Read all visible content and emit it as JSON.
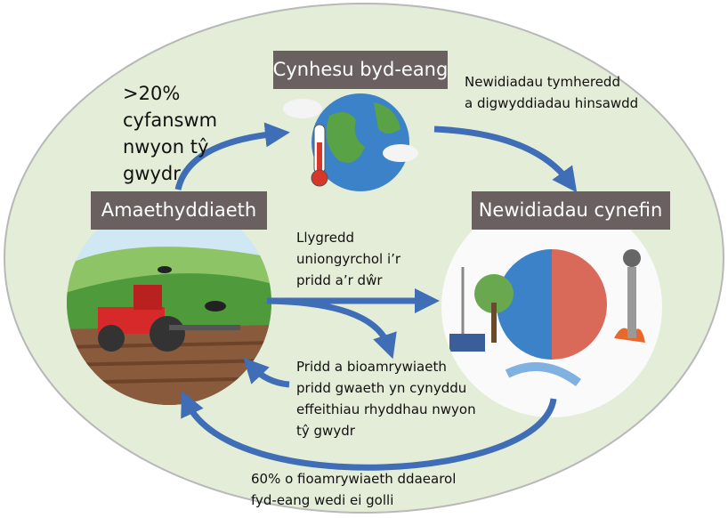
{
  "nodes": [
    {
      "label": "Cynhesu byd-eang"
    },
    {
      "label": "Amaethyddiaeth"
    },
    {
      "label": "Newidiadau cynefin"
    }
  ],
  "annotations": [
    {
      "lines": [
        ">20%",
        "cyfanswm",
        "nwyon tŷ",
        "gwydr"
      ]
    },
    {
      "lines": [
        "Newidiadau tymheredd",
        "a digwyddiadau hinsawdd"
      ]
    },
    {
      "lines": [
        "Llygredd",
        "uniongyrchol i’r",
        "pridd a’r dŵr"
      ]
    },
    {
      "lines": [
        "Pridd a bioamrywiaeth",
        "pridd gwaeth yn cynyddu",
        "effeithiau rhyddhau nwyon",
        "tŷ gwydr"
      ]
    },
    {
      "lines": [
        "60% o fioamrywiaeth ddaearol",
        "fyd-eang wedi ei golli"
      ]
    }
  ]
}
